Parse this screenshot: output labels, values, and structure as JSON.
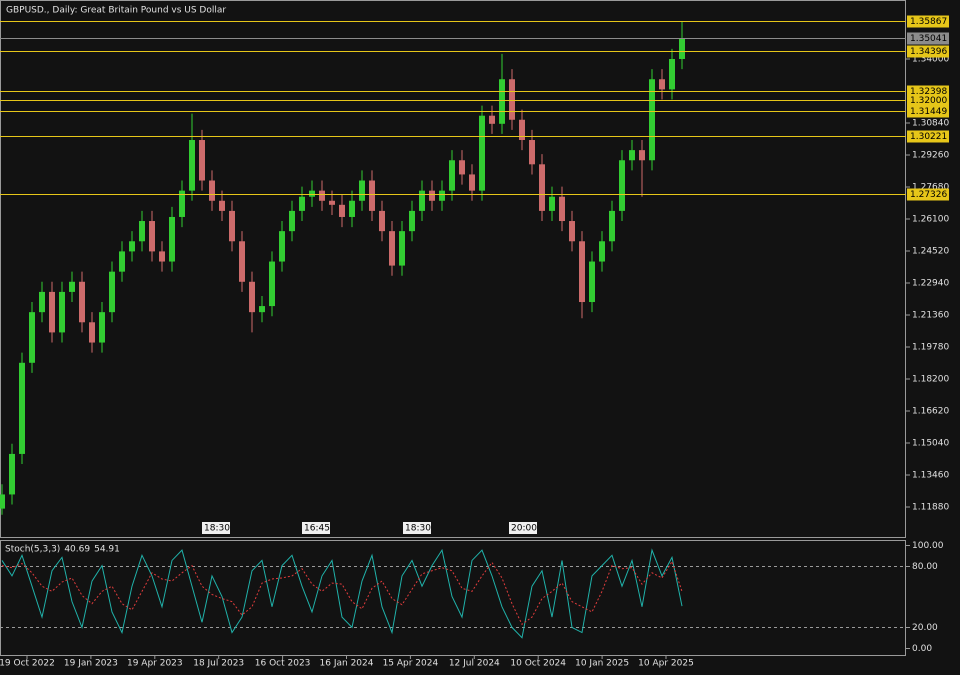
{
  "chart_data": [
    {
      "type": "candlestick",
      "title": "GBPUSD., Daily:  Great Britain Pound vs US Dollar",
      "open": [
        1.118,
        1.125,
        1.145,
        1.19,
        1.215,
        1.225,
        1.205,
        1.225,
        1.23,
        1.21,
        1.2,
        1.215,
        1.235,
        1.245,
        1.25,
        1.26,
        1.245,
        1.24,
        1.262,
        1.275,
        1.3,
        1.28,
        1.27,
        1.265,
        1.25,
        1.23,
        1.215,
        1.218,
        1.24,
        1.255,
        1.265,
        1.272,
        1.275,
        1.27,
        1.268,
        1.262,
        1.27,
        1.28,
        1.265,
        1.255,
        1.238,
        1.255,
        1.265,
        1.275,
        1.27,
        1.275,
        1.29,
        1.283,
        1.275,
        1.312,
        1.308,
        1.33,
        1.31,
        1.3,
        1.288,
        1.265,
        1.272,
        1.26,
        1.25,
        1.22,
        1.24,
        1.25,
        1.265,
        1.29,
        1.295,
        1.29,
        1.33,
        1.325,
        1.34
      ],
      "high": [
        1.13,
        1.15,
        1.195,
        1.22,
        1.23,
        1.23,
        1.23,
        1.235,
        1.235,
        1.215,
        1.22,
        1.24,
        1.25,
        1.255,
        1.265,
        1.265,
        1.25,
        1.267,
        1.28,
        1.313,
        1.305,
        1.285,
        1.275,
        1.27,
        1.255,
        1.235,
        1.223,
        1.245,
        1.26,
        1.27,
        1.277,
        1.28,
        1.28,
        1.275,
        1.273,
        1.275,
        1.285,
        1.285,
        1.27,
        1.26,
        1.26,
        1.27,
        1.28,
        1.28,
        1.28,
        1.295,
        1.295,
        1.288,
        1.317,
        1.317,
        1.3425,
        1.335,
        1.315,
        1.305,
        1.293,
        1.277,
        1.277,
        1.265,
        1.255,
        1.245,
        1.255,
        1.27,
        1.295,
        1.3,
        1.3,
        1.335,
        1.335,
        1.345,
        1.3587
      ],
      "low": [
        1.115,
        1.12,
        1.14,
        1.185,
        1.21,
        1.2,
        1.2,
        1.22,
        1.205,
        1.195,
        1.195,
        1.21,
        1.23,
        1.24,
        1.245,
        1.24,
        1.235,
        1.235,
        1.257,
        1.27,
        1.275,
        1.265,
        1.26,
        1.245,
        1.225,
        1.205,
        1.21,
        1.213,
        1.235,
        1.25,
        1.26,
        1.267,
        1.265,
        1.263,
        1.257,
        1.257,
        1.265,
        1.26,
        1.25,
        1.233,
        1.233,
        1.25,
        1.26,
        1.265,
        1.265,
        1.27,
        1.278,
        1.27,
        1.27,
        1.303,
        1.303,
        1.305,
        1.295,
        1.283,
        1.26,
        1.26,
        1.255,
        1.245,
        1.212,
        1.215,
        1.235,
        1.245,
        1.26,
        1.285,
        1.272,
        1.285,
        1.32,
        1.32,
        1.335
      ],
      "close": [
        1.125,
        1.145,
        1.19,
        1.215,
        1.225,
        1.205,
        1.225,
        1.23,
        1.21,
        1.2,
        1.215,
        1.235,
        1.245,
        1.25,
        1.26,
        1.245,
        1.24,
        1.262,
        1.275,
        1.3,
        1.28,
        1.27,
        1.265,
        1.25,
        1.23,
        1.215,
        1.218,
        1.24,
        1.255,
        1.265,
        1.272,
        1.275,
        1.27,
        1.268,
        1.262,
        1.27,
        1.28,
        1.265,
        1.255,
        1.238,
        1.255,
        1.265,
        1.275,
        1.27,
        1.275,
        1.29,
        1.283,
        1.275,
        1.312,
        1.308,
        1.33,
        1.31,
        1.3,
        1.288,
        1.265,
        1.272,
        1.26,
        1.25,
        1.22,
        1.24,
        1.25,
        1.265,
        1.29,
        1.295,
        1.29,
        1.33,
        1.325,
        1.34,
        1.35
      ],
      "up_color": "#32cd32",
      "down_color": "#cd6b6b",
      "ylim": [
        1.10349,
        1.36913
      ],
      "yticks": [
        {
          "value": 1.34,
          "label": "1.34000"
        },
        {
          "value": 1.3084,
          "label": "1.30840"
        },
        {
          "value": 1.2926,
          "label": "1.29260"
        },
        {
          "value": 1.2768,
          "label": "1.27680"
        },
        {
          "value": 1.261,
          "label": "1.26100"
        },
        {
          "value": 1.2452,
          "label": "1.24520"
        },
        {
          "value": 1.2294,
          "label": "1.22940"
        },
        {
          "value": 1.2136,
          "label": "1.21360"
        },
        {
          "value": 1.1978,
          "label": "1.19780"
        },
        {
          "value": 1.182,
          "label": "1.18200"
        },
        {
          "value": 1.1662,
          "label": "1.16620"
        },
        {
          "value": 1.1504,
          "label": "1.15040"
        },
        {
          "value": 1.1346,
          "label": "1.13460"
        },
        {
          "value": 1.1188,
          "label": "1.11880"
        }
      ],
      "levels": [
        1.35867,
        1.34396,
        1.32398,
        {
          "value": 1.32,
          "label": "1.32000"
        },
        1.31449,
        1.30221,
        1.27326
      ],
      "level_color": "#e6c619",
      "current": 1.35041,
      "session_labels": [
        "18:30",
        "16:45",
        "18:30",
        "20:00"
      ],
      "xticks": [
        "19 Oct 2022",
        "19 Jan 2023",
        "19 Apr 2023",
        "18 Jul 2023",
        "16 Oct 2023",
        "16 Jan 2024",
        "15 Apr 2024",
        "12 Jul 2024",
        "10 Oct 2024",
        "10 Jan 2025",
        "10 Apr 2025"
      ]
    },
    {
      "type": "line",
      "title": "Stoch(5,3,3)",
      "series": [
        {
          "name": "Main",
          "color": "#20b2aa",
          "values": [
            85,
            70,
            90,
            60,
            30,
            75,
            88,
            45,
            20,
            65,
            80,
            35,
            15,
            60,
            90,
            70,
            40,
            85,
            95,
            60,
            25,
            70,
            50,
            15,
            30,
            75,
            85,
            40,
            80,
            90,
            60,
            35,
            70,
            85,
            30,
            20,
            65,
            90,
            40,
            15,
            70,
            85,
            60,
            80,
            95,
            50,
            30,
            85,
            95,
            70,
            40,
            20,
            10,
            60,
            75,
            30,
            85,
            20,
            15,
            70,
            80,
            90,
            60,
            85,
            40,
            95,
            70,
            88,
            40.69
          ]
        },
        {
          "name": "Signal",
          "color": "#e03c3c",
          "values": [
            80,
            78,
            82,
            73,
            60,
            55,
            64,
            68,
            51,
            43,
            55,
            60,
            43,
            37,
            55,
            73,
            67,
            65,
            73,
            80,
            60,
            52,
            48,
            45,
            32,
            40,
            63,
            67,
            68,
            70,
            77,
            62,
            55,
            63,
            62,
            45,
            38,
            58,
            65,
            48,
            42,
            57,
            72,
            75,
            78,
            75,
            58,
            55,
            70,
            83,
            68,
            43,
            23,
            30,
            48,
            55,
            63,
            45,
            40,
            35,
            55,
            80,
            77,
            78,
            62,
            73,
            68,
            84,
            54.91
          ]
        }
      ],
      "ylim": [
        0,
        100
      ],
      "yticks": [
        {
          "value": 100,
          "label": "100.00"
        },
        {
          "value": 80,
          "label": "80.00"
        },
        {
          "value": 20,
          "label": "20.00"
        },
        {
          "value": 0,
          "label": "0.00"
        }
      ]
    }
  ]
}
